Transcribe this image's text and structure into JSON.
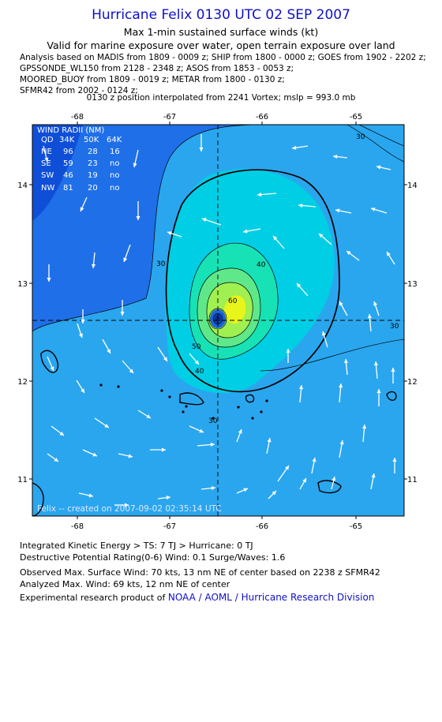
{
  "header": {
    "title": "Hurricane Felix 0130 UTC 02 SEP 2007",
    "subtitle": "Max 1-min sustained surface winds (kt)",
    "validity": "Valid for marine exposure over water, open terrain exposure over land",
    "analysis_lines": [
      "Analysis based on  MADIS from 1809 - 0009 z;  SHIP from 1800 - 0000 z;  GOES from 1902 - 2202 z;",
      "GPSSONDE_WL150 from 2128 - 2348 z;  ASOS from 1853 - 0053 z;",
      "MOORED_BUOY from 1809 - 0019 z;  METAR from 1800 - 0130 z;",
      "SFMR42 from 2002 - 0124 z;"
    ],
    "position_line": "0130 z position interpolated from 2241 Vortex; mslp = 993.0 mb"
  },
  "map": {
    "lon_ticks": [
      "-68",
      "-67",
      "-66",
      "-65"
    ],
    "lat_ticks": [
      "14",
      "13",
      "12",
      "11"
    ],
    "lon_range": [
      -68.5,
      -64.5
    ],
    "lat_range": [
      10.65,
      14.6
    ],
    "center": {
      "lon": -66.5,
      "lat": 12.6
    },
    "contour_labels": [
      "30",
      "40",
      "50",
      "60",
      "30",
      "40",
      "30",
      "30"
    ],
    "wind_radii": {
      "title": "WIND RADII (NM)",
      "header": [
        "QD",
        "34K",
        "50K",
        "64K"
      ],
      "rows": [
        [
          "NE",
          "96",
          "28",
          "16"
        ],
        [
          "SE",
          "59",
          "23",
          "no"
        ],
        [
          "SW",
          "46",
          "19",
          "no"
        ],
        [
          "NW",
          "81",
          "20",
          "no"
        ]
      ]
    },
    "credit": "Felix -- created on 2007-09-02 02:35:14 UTC",
    "colors": {
      "ocean": "#1f6fe8",
      "c30": "#2aa6ee",
      "c40": "#00cee4",
      "c50": "#16e2b6",
      "c60": "#5fe88a",
      "c64": "#9ff050",
      "c70": "#e8f51a",
      "land": "#000000",
      "arrow": "#ffffff"
    }
  },
  "footer": {
    "ike": "Integrated Kinetic Energy > TS: 7 TJ   > Hurricane: 0 TJ",
    "dpr": "Destructive Potential Rating(0-6)   Wind: 0.1 Surge/Waves: 1.6",
    "observed": "Observed Max. Surface Wind: 70 kts, 13 nm NE of center based on 2238 z SFMR42",
    "analyzed": "Analyzed Max. Wind: 69 kts, 12 nm NE of center",
    "product_prefix": "Experimental research product of ",
    "product_link": "NOAA / AOML / Hurricane Research Division"
  }
}
